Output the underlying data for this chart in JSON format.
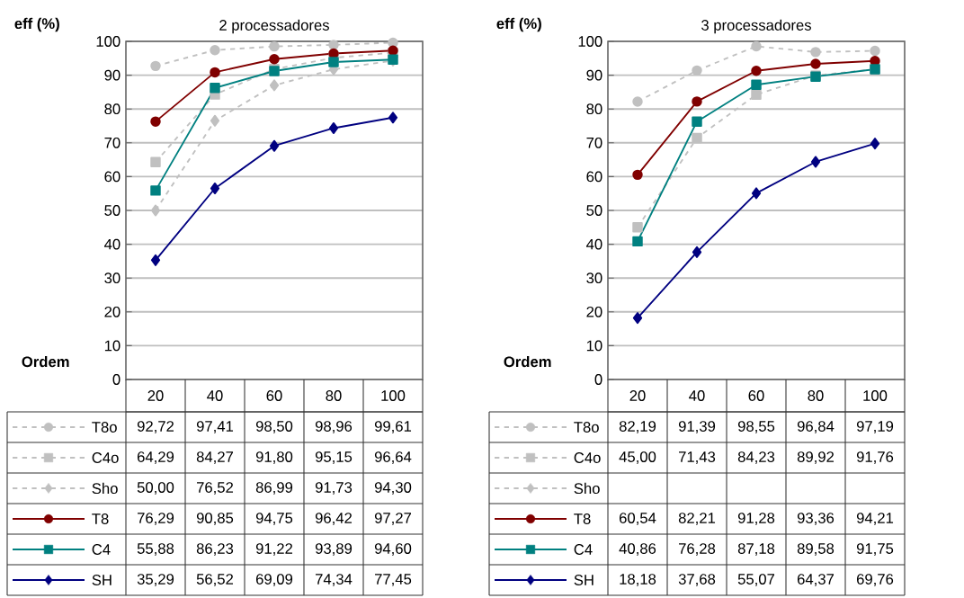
{
  "chart_data": [
    {
      "type": "line",
      "title": "2 processadores",
      "ylabel": "eff (%)",
      "xlabel": "Ordem",
      "categories": [
        "20",
        "40",
        "60",
        "80",
        "100"
      ],
      "ylim": [
        0,
        100
      ],
      "yticks": [
        0,
        10,
        20,
        30,
        40,
        50,
        60,
        70,
        80,
        90,
        100
      ],
      "grid": "y",
      "legend": "bottom",
      "series": [
        {
          "name": "T8o",
          "color": "#c0c0c0",
          "marker": "circle",
          "line_style": "dashed",
          "values": [
            92.72,
            97.41,
            98.5,
            98.96,
            99.61
          ],
          "value_labels": [
            "92,72",
            "97,41",
            "98,50",
            "98,96",
            "99,61"
          ]
        },
        {
          "name": "C4o",
          "color": "#c0c0c0",
          "marker": "square",
          "line_style": "dashed",
          "values": [
            64.29,
            84.27,
            91.8,
            95.15,
            96.64
          ],
          "value_labels": [
            "64,29",
            "84,27",
            "91,80",
            "95,15",
            "96,64"
          ]
        },
        {
          "name": "Sho",
          "color": "#c0c0c0",
          "marker": "diamond",
          "line_style": "dashed",
          "values": [
            50.0,
            76.52,
            86.99,
            91.73,
            94.3
          ],
          "value_labels": [
            "50,00",
            "76,52",
            "86,99",
            "91,73",
            "94,30"
          ]
        },
        {
          "name": "T8",
          "color": "#800000",
          "marker": "circle",
          "line_style": "solid",
          "values": [
            76.29,
            90.85,
            94.75,
            96.42,
            97.27
          ],
          "value_labels": [
            "76,29",
            "90,85",
            "94,75",
            "96,42",
            "97,27"
          ]
        },
        {
          "name": "C4",
          "color": "#008080",
          "marker": "square",
          "line_style": "solid",
          "values": [
            55.88,
            86.23,
            91.22,
            93.89,
            94.6
          ],
          "value_labels": [
            "55,88",
            "86,23",
            "91,22",
            "93,89",
            "94,60"
          ]
        },
        {
          "name": "SH",
          "color": "#000080",
          "marker": "diamond",
          "line_style": "solid",
          "values": [
            35.29,
            56.52,
            69.09,
            74.34,
            77.45
          ],
          "value_labels": [
            "35,29",
            "56,52",
            "69,09",
            "74,34",
            "77,45"
          ]
        }
      ]
    },
    {
      "type": "line",
      "title": "3 processadores",
      "ylabel": "eff (%)",
      "xlabel": "Ordem",
      "categories": [
        "20",
        "40",
        "60",
        "80",
        "100"
      ],
      "ylim": [
        0,
        100
      ],
      "yticks": [
        0,
        10,
        20,
        30,
        40,
        50,
        60,
        70,
        80,
        90,
        100
      ],
      "grid": "y",
      "legend": "bottom",
      "series": [
        {
          "name": "T8o",
          "color": "#c0c0c0",
          "marker": "circle",
          "line_style": "dashed",
          "values": [
            82.19,
            91.39,
            98.55,
            96.84,
            97.19
          ],
          "value_labels": [
            "82,19",
            "91,39",
            "98,55",
            "96,84",
            "97,19"
          ]
        },
        {
          "name": "C4o",
          "color": "#c0c0c0",
          "marker": "square",
          "line_style": "dashed",
          "values": [
            45.0,
            71.43,
            84.23,
            89.92,
            91.76
          ],
          "value_labels": [
            "45,00",
            "71,43",
            "84,23",
            "89,92",
            "91,76"
          ]
        },
        {
          "name": "Sho",
          "color": "#c0c0c0",
          "marker": "diamond",
          "line_style": "dashed",
          "values": [
            null,
            null,
            null,
            null,
            null
          ],
          "value_labels": [
            null,
            null,
            null,
            null,
            null
          ]
        },
        {
          "name": "T8",
          "color": "#800000",
          "marker": "circle",
          "line_style": "solid",
          "values": [
            60.54,
            82.21,
            91.28,
            93.36,
            94.21
          ],
          "value_labels": [
            "60,54",
            "82,21",
            "91,28",
            "93,36",
            "94,21"
          ]
        },
        {
          "name": "C4",
          "color": "#008080",
          "marker": "square",
          "line_style": "solid",
          "values": [
            40.86,
            76.28,
            87.18,
            89.58,
            91.75
          ],
          "value_labels": [
            "40,86",
            "76,28",
            "87,18",
            "89,58",
            "91,75"
          ]
        },
        {
          "name": "SH",
          "color": "#000080",
          "marker": "diamond",
          "line_style": "solid",
          "values": [
            18.18,
            37.68,
            55.07,
            64.37,
            69.76
          ],
          "value_labels": [
            "18,18",
            "37,68",
            "55,07",
            "64,37",
            "69,76"
          ]
        }
      ]
    }
  ]
}
